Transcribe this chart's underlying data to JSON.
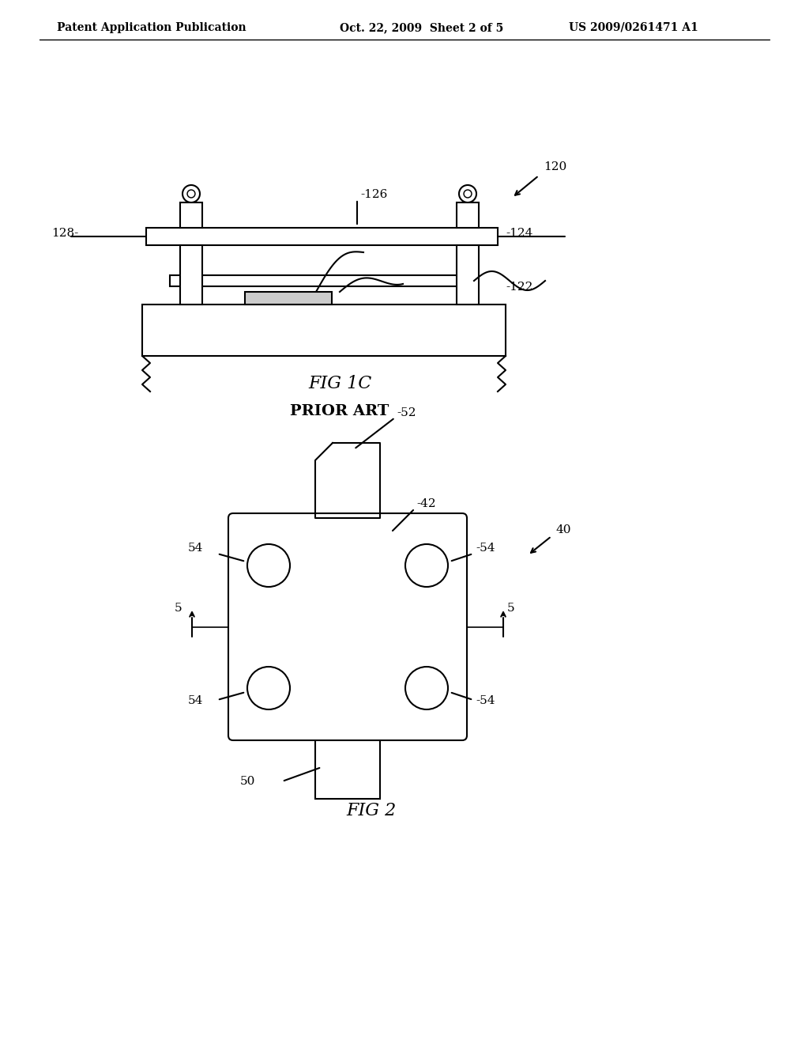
{
  "background_color": "#ffffff",
  "header_left": "Patent Application Publication",
  "header_center": "Oct. 22, 2009  Sheet 2 of 5",
  "header_right": "US 2009/0261471 A1",
  "fig1c_label": "FIG 1C",
  "prior_art_label": "PRIOR ART",
  "fig2_label": "FIG 2",
  "line_color": "#000000",
  "lw": 1.5
}
